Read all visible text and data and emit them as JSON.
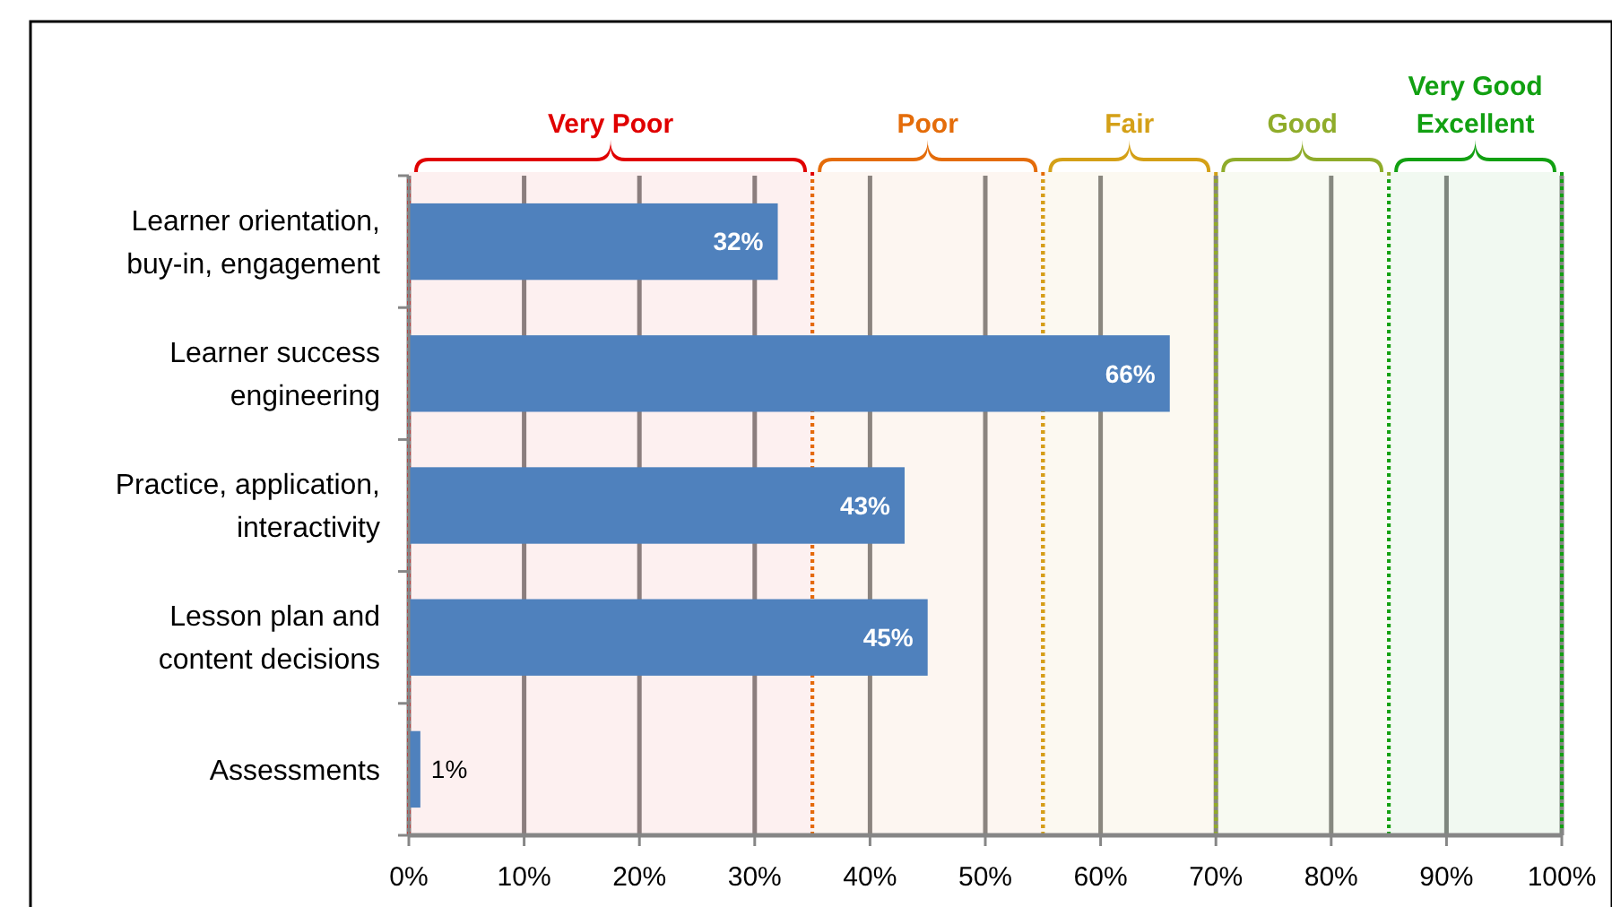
{
  "chart_data": {
    "type": "bar",
    "orientation": "horizontal",
    "categories": [
      "Learner orientation, buy-in, engagement",
      "Learner success engineering",
      "Practice, application, interactivity",
      "Lesson plan and content decisions",
      "Assessments"
    ],
    "values": [
      32,
      66,
      43,
      45,
      1
    ],
    "color": "#4f81bd",
    "value_labels": [
      "32%",
      "66%",
      "43%",
      "45%",
      "1%"
    ],
    "xlim": [
      0,
      100
    ],
    "xticks": [
      {
        "value": 0,
        "label": "0%"
      },
      {
        "value": 10,
        "label": "10%"
      },
      {
        "value": 20,
        "label": "20%"
      },
      {
        "value": 30,
        "label": "30%"
      },
      {
        "value": 40,
        "label": "40%"
      },
      {
        "value": 50,
        "label": "50%"
      },
      {
        "value": 60,
        "label": "60%"
      },
      {
        "value": 70,
        "label": "70%"
      },
      {
        "value": 80,
        "label": "80%"
      },
      {
        "value": 90,
        "label": "90%"
      },
      {
        "value": 100,
        "label": "100%"
      }
    ],
    "grid": "x",
    "bands": [
      {
        "axis": "x",
        "from": 0,
        "to": 35,
        "label": "Very Poor",
        "color": "#e00000"
      },
      {
        "axis": "x",
        "from": 35,
        "to": 55,
        "label": "Poor",
        "color": "#e46c0a"
      },
      {
        "axis": "x",
        "from": 55,
        "to": 70,
        "label": "Fair",
        "color": "#d4a017"
      },
      {
        "axis": "x",
        "from": 70,
        "to": 85,
        "label": "Good",
        "color": "#8fac2a"
      },
      {
        "axis": "x",
        "from": 85,
        "to": 100,
        "label": "Very Good\nExcellent",
        "color": "#12a012"
      }
    ]
  }
}
